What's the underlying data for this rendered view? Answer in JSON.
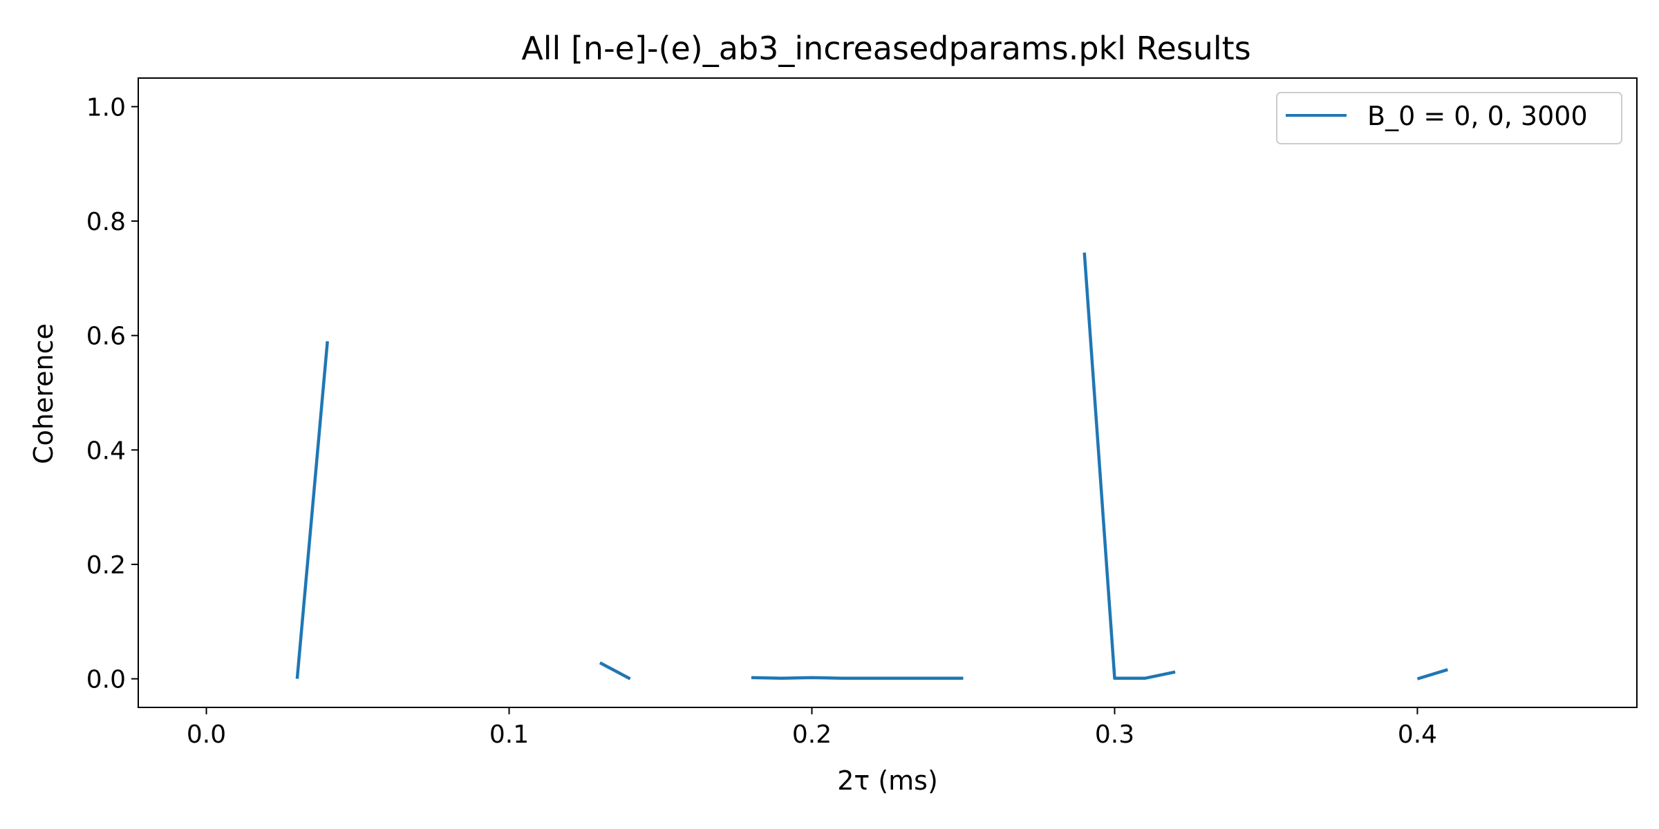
{
  "chart_data": {
    "type": "line",
    "title": "All [n-e]-(e)_ab3_increasedparams.pkl Results",
    "xlabel": "2τ (ms)",
    "ylabel": "Coherence",
    "xlim": [
      -0.0225,
      0.4725
    ],
    "ylim": [
      -0.05,
      1.05
    ],
    "xticks": [
      0.0,
      0.1,
      0.2,
      0.3,
      0.4
    ],
    "yticks": [
      0.0,
      0.2,
      0.4,
      0.6,
      0.8,
      1.0
    ],
    "xtick_labels": [
      "0.0",
      "0.1",
      "0.2",
      "0.3",
      "0.4"
    ],
    "ytick_labels": [
      "0.0",
      "0.2",
      "0.4",
      "0.6",
      "0.8",
      "1.0"
    ],
    "grid": false,
    "legend_position": "top-right",
    "series": [
      {
        "name": "B_0 = 0, 0, 3000",
        "color": "#1f77b4",
        "x": [
          0.0,
          0.01,
          0.02,
          0.03,
          0.04,
          0.05,
          0.06,
          0.07,
          0.08,
          0.09,
          0.1,
          0.11,
          0.12,
          0.13,
          0.14,
          0.15,
          0.16,
          0.17,
          0.18,
          0.19,
          0.2,
          0.21,
          0.22,
          0.23,
          0.24,
          0.25,
          0.26,
          0.27,
          0.28,
          0.29,
          0.3,
          0.31,
          0.32,
          0.33,
          0.34,
          0.35,
          0.36,
          0.37,
          0.38,
          0.39,
          0.4,
          0.41,
          0.42,
          0.43,
          0.44,
          0.45
        ],
        "y": [
          null,
          null,
          null,
          0.0,
          0.59,
          null,
          null,
          null,
          null,
          null,
          null,
          null,
          null,
          0.028,
          0.0,
          null,
          null,
          null,
          0.002,
          0.001,
          0.002,
          0.001,
          0.001,
          0.001,
          0.001,
          0.001,
          null,
          null,
          null,
          0.745,
          0.001,
          0.001,
          0.012,
          null,
          null,
          null,
          null,
          null,
          null,
          null,
          0.0,
          0.016,
          null,
          null,
          null,
          null
        ]
      }
    ]
  }
}
